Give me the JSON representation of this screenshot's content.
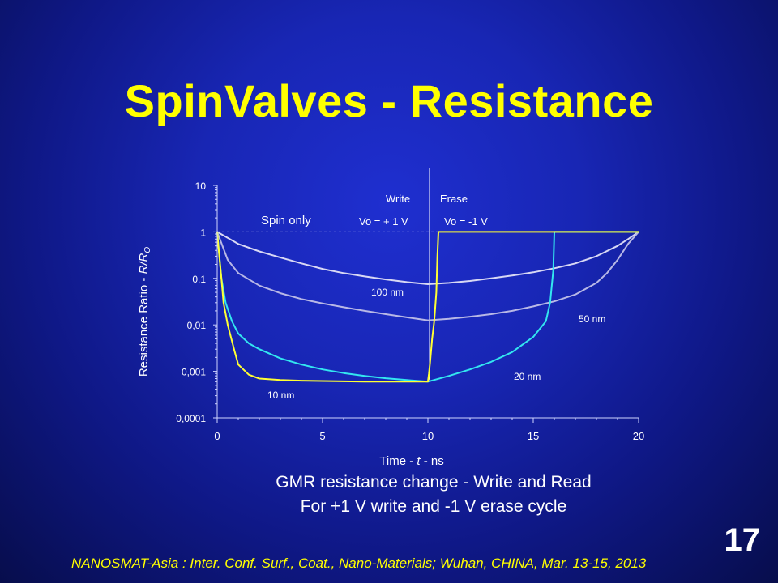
{
  "slide": {
    "title": "SpinValves - Resistance",
    "caption_line1": "GMR resistance change - Write and Read",
    "caption_line2": "For +1 V write and -1 V erase cycle",
    "footer": "NANOSMAT-Asia : Inter. Conf. Surf., Coat., Nano-Materials; Wuhan, CHINA, Mar. 13-15, 2013",
    "page_number": "17"
  },
  "colors": {
    "title": "#ffff00",
    "text": "#ffffff",
    "yellow_curve": "#ffff33",
    "cyan_curve": "#33e6f0",
    "lavender_curve_upper": "#d8d8f4",
    "lavender_curve_lower": "#b8b8e6"
  },
  "chart_data": {
    "type": "line",
    "xlabel_prefix": "Time - ",
    "xlabel_var": "t",
    "xlabel_suffix": " - ns",
    "ylabel_prefix": "Resistance  Ratio - ",
    "ylabel_var": "R/R",
    "ylabel_sub": "O",
    "xlim": [
      0,
      20
    ],
    "ylim": [
      0.0001,
      10
    ],
    "yscale": "log",
    "x_ticks": [
      "0",
      "5",
      "10",
      "15",
      "20"
    ],
    "x_tick_values": [
      0,
      5,
      10,
      15,
      20
    ],
    "y_ticks": [
      "0,0001",
      "0,001",
      "0,01",
      "0,1",
      "1",
      "10"
    ],
    "y_tick_values": [
      0.0001,
      0.001,
      0.01,
      0.1,
      1,
      10
    ],
    "annotations": {
      "spin_only": "Spin only",
      "write": "Write",
      "erase": "Erase",
      "write_voltage": "Vo = + 1 V",
      "erase_voltage": "Vo = -1  V",
      "label_100nm": "100 nm",
      "label_50nm": "50 nm",
      "label_20nm": "20 nm",
      "label_10nm": "10 nm"
    },
    "reference_line_y": 1,
    "divider_x": 10,
    "series": [
      {
        "name": "100 nm",
        "color": "#d8d8f4",
        "x": [
          0,
          1,
          2,
          3,
          4,
          5,
          6,
          7,
          8,
          9,
          10,
          11,
          12,
          13,
          14,
          15,
          16,
          17,
          18,
          19,
          19.5,
          20
        ],
        "y": [
          1,
          0.55,
          0.38,
          0.28,
          0.21,
          0.16,
          0.13,
          0.11,
          0.095,
          0.083,
          0.075,
          0.08,
          0.088,
          0.1,
          0.115,
          0.135,
          0.165,
          0.21,
          0.3,
          0.5,
          0.7,
          1
        ]
      },
      {
        "name": "50 nm",
        "color": "#b8b8e6",
        "x": [
          0,
          0.5,
          1,
          2,
          3,
          4,
          5,
          6,
          7,
          8,
          9,
          10,
          11,
          12,
          13,
          14,
          15,
          16,
          17,
          18,
          18.5,
          19,
          19.5,
          20
        ],
        "y": [
          1,
          0.25,
          0.13,
          0.07,
          0.048,
          0.036,
          0.029,
          0.024,
          0.02,
          0.017,
          0.0145,
          0.0125,
          0.0135,
          0.015,
          0.017,
          0.02,
          0.025,
          0.032,
          0.045,
          0.08,
          0.13,
          0.25,
          0.55,
          1
        ]
      },
      {
        "name": "20 nm",
        "color": "#33e6f0",
        "x": [
          0,
          0.2,
          0.4,
          0.7,
          1,
          1.5,
          2,
          3,
          4,
          5,
          6,
          7,
          8,
          9,
          10,
          11,
          12,
          13,
          14,
          15,
          15.6,
          15.8,
          15.95,
          16,
          17,
          18,
          19,
          20
        ],
        "y": [
          1,
          0.1,
          0.03,
          0.012,
          0.0065,
          0.004,
          0.003,
          0.0019,
          0.0014,
          0.0011,
          0.00092,
          0.0008,
          0.00071,
          0.00065,
          0.0006,
          0.0008,
          0.0011,
          0.0016,
          0.0026,
          0.0055,
          0.012,
          0.03,
          0.15,
          1,
          1,
          1,
          1,
          1
        ]
      },
      {
        "name": "10 nm",
        "color": "#ffff33",
        "x": [
          0,
          0.1,
          0.2,
          0.3,
          0.5,
          0.8,
          1,
          1.5,
          2,
          3,
          4,
          5,
          6,
          7,
          8,
          9,
          10,
          10.05,
          10.1,
          10.2,
          10.3,
          10.4,
          10.45,
          10.5,
          12,
          14,
          16,
          18,
          20
        ],
        "y": [
          1,
          0.3,
          0.1,
          0.03,
          0.01,
          0.003,
          0.0014,
          0.00085,
          0.0007,
          0.00065,
          0.00063,
          0.00062,
          0.00061,
          0.0006,
          0.0006,
          0.0006,
          0.0006,
          0.0009,
          0.0015,
          0.005,
          0.012,
          0.05,
          0.3,
          1,
          1,
          1,
          1,
          1,
          1
        ]
      }
    ]
  }
}
